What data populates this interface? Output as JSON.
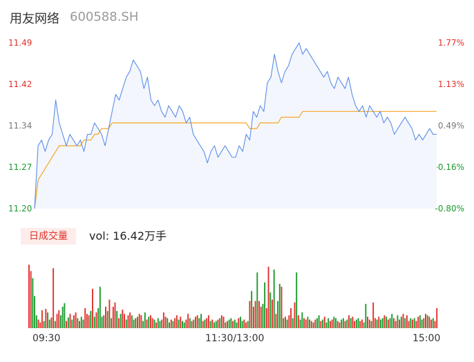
{
  "header": {
    "title": "用友网络",
    "code": "600588.SH"
  },
  "price_axis": {
    "left_labels": [
      "11.49",
      "11.42",
      "11.34",
      "11.27",
      "11.20"
    ],
    "right_labels": [
      "1.77%",
      "1.13%",
      "0.49%",
      "-0.16%",
      "-0.80%"
    ],
    "left_colors": [
      "#e0302b",
      "#e0302b",
      "#777777",
      "#1a9a2c",
      "#1a9a2c"
    ],
    "right_colors": [
      "#e0302b",
      "#e0302b",
      "#777777",
      "#1a9a2c",
      "#1a9a2c"
    ]
  },
  "volume_panel": {
    "tab_label": "日成交量",
    "vol_prefix": "vol:",
    "vol_value": "16.42万手"
  },
  "time_axis": {
    "labels": [
      "09:30",
      "11:30/13:00",
      "15:00"
    ]
  },
  "colors": {
    "price_line": "#5b8de8",
    "avg_line": "#f5a623",
    "fill": "#f3f6fd",
    "up": "#e0302b",
    "down": "#1a9a2c"
  },
  "chart_data": [
    {
      "type": "line",
      "title": "",
      "xlabel": "",
      "ylabel": "",
      "ylim": [
        11.2,
        11.49
      ],
      "x_labels": [
        "09:30",
        "11:30/13:00",
        "15:00"
      ],
      "series": [
        {
          "values": [
            11.2,
            11.31,
            11.32,
            11.3,
            11.32,
            11.33,
            11.39,
            11.35,
            11.33,
            11.31,
            11.33,
            11.32,
            11.31,
            11.32,
            11.3,
            11.33,
            11.33,
            11.35,
            11.34,
            11.33,
            11.31,
            11.34,
            11.37,
            11.4,
            11.39,
            11.41,
            11.43,
            11.44,
            11.46,
            11.45,
            11.44,
            11.41,
            11.43,
            11.39,
            11.38,
            11.39,
            11.37,
            11.36,
            11.38,
            11.37,
            11.36,
            11.38,
            11.37,
            11.35,
            11.36,
            11.33,
            11.32,
            11.31,
            11.3,
            11.28,
            11.3,
            11.31,
            11.29,
            11.3,
            11.31,
            11.3,
            11.29,
            11.29,
            11.31,
            11.3,
            11.33,
            11.32,
            11.37,
            11.36,
            11.38,
            11.37,
            11.42,
            11.43,
            11.47,
            11.44,
            11.42,
            11.44,
            11.45,
            11.47,
            11.48,
            11.49,
            11.47,
            11.48,
            11.47,
            11.46,
            11.45,
            11.44,
            11.43,
            11.44,
            11.42,
            11.41,
            11.43,
            11.42,
            11.41,
            11.43,
            11.4,
            11.38,
            11.37,
            11.38,
            11.36,
            11.38,
            11.37,
            11.36,
            11.37,
            11.35,
            11.36,
            11.35,
            11.33,
            11.34,
            11.35,
            11.36,
            11.35,
            11.34,
            11.32,
            11.33,
            11.32,
            11.33,
            11.34,
            11.33,
            11.33
          ]
        },
        {
          "values": [
            11.2,
            11.25,
            11.26,
            11.27,
            11.28,
            11.29,
            11.3,
            11.31,
            11.31,
            11.31,
            11.31,
            11.31,
            11.31,
            11.31,
            11.32,
            11.32,
            11.32,
            11.33,
            11.33,
            11.34,
            11.34,
            11.34,
            11.35,
            11.35,
            11.35,
            11.35,
            11.35,
            11.35,
            11.35,
            11.35,
            11.35,
            11.35,
            11.35,
            11.35,
            11.35,
            11.35,
            11.35,
            11.35,
            11.35,
            11.35,
            11.35,
            11.35,
            11.35,
            11.35,
            11.35,
            11.35,
            11.35,
            11.35,
            11.35,
            11.35,
            11.35,
            11.35,
            11.35,
            11.35,
            11.35,
            11.35,
            11.35,
            11.35,
            11.35,
            11.35,
            11.35,
            11.34,
            11.34,
            11.34,
            11.35,
            11.35,
            11.35,
            11.35,
            11.35,
            11.35,
            11.36,
            11.36,
            11.36,
            11.36,
            11.36,
            11.36,
            11.37,
            11.37,
            11.37,
            11.37,
            11.37,
            11.37,
            11.37,
            11.37,
            11.37,
            11.37,
            11.37,
            11.37,
            11.37,
            11.37,
            11.37,
            11.37,
            11.37,
            11.37,
            11.37,
            11.37,
            11.37,
            11.37,
            11.37,
            11.37,
            11.37,
            11.37,
            11.37,
            11.37,
            11.37,
            11.37,
            11.37,
            11.37,
            11.37,
            11.37,
            11.37,
            11.37,
            11.37,
            11.37,
            11.37
          ]
        }
      ]
    },
    {
      "type": "bar",
      "title": "",
      "values": [
        89,
        80,
        70,
        45,
        18,
        12,
        8,
        25,
        10,
        27,
        22,
        12,
        15,
        84,
        10,
        20,
        25,
        18,
        30,
        35,
        10,
        15,
        20,
        12,
        18,
        22,
        14,
        10,
        16,
        12,
        28,
        20,
        18,
        24,
        55,
        16,
        22,
        28,
        58,
        16,
        18,
        30,
        24,
        40,
        14,
        30,
        36,
        24,
        14,
        20,
        26,
        20,
        12,
        18,
        22,
        18,
        12,
        14,
        16,
        20,
        18,
        10,
        22,
        12,
        16,
        18,
        14,
        12,
        8,
        14,
        10,
        12,
        22,
        16,
        14,
        8,
        12,
        10,
        14,
        18,
        12,
        16,
        10,
        8,
        12,
        20,
        14,
        10,
        12,
        16,
        18,
        14,
        20,
        10,
        12,
        14,
        18,
        10,
        12,
        8,
        10,
        12,
        14,
        18,
        16,
        8,
        10,
        12,
        14,
        10,
        12,
        8,
        14,
        16,
        10,
        12,
        8,
        10,
        38,
        52,
        30,
        38,
        78,
        38,
        30,
        34,
        64,
        28,
        86,
        50,
        40,
        82,
        20,
        38,
        62,
        58,
        14,
        16,
        12,
        18,
        28,
        14,
        36,
        78,
        18,
        12,
        22,
        14,
        12,
        16,
        12,
        10,
        8,
        12,
        14,
        18,
        10,
        12,
        16,
        8,
        14,
        10,
        12,
        16,
        14,
        10,
        8,
        12,
        14,
        10,
        12,
        18,
        14,
        16,
        10,
        12,
        14,
        10,
        12,
        8,
        34,
        16,
        12,
        10,
        36,
        14,
        12,
        16,
        12,
        14,
        18,
        16,
        12,
        14,
        20,
        14,
        10,
        18,
        12,
        16,
        20,
        14,
        18,
        10,
        14,
        12,
        14,
        10,
        16,
        18,
        12,
        14,
        20,
        18,
        16,
        12,
        14,
        10,
        28
      ],
      "up": [
        1,
        1,
        0,
        0,
        0,
        1,
        1,
        1,
        0,
        1,
        0,
        0,
        1,
        1,
        0,
        1,
        1,
        0,
        0,
        0,
        1,
        0,
        1,
        0,
        1,
        1,
        0,
        1,
        0,
        0,
        1,
        1,
        1,
        0,
        1,
        0,
        1,
        0,
        0,
        0,
        1,
        1,
        0,
        1,
        0,
        1,
        1,
        0,
        1,
        0,
        1,
        1,
        0,
        1,
        1,
        0,
        0,
        1,
        0,
        1,
        1,
        0,
        0,
        1,
        0,
        1,
        1,
        0,
        1,
        0,
        0,
        1,
        1,
        1,
        0,
        0,
        1,
        0,
        1,
        1,
        0,
        1,
        0,
        0,
        1,
        1,
        0,
        1,
        0,
        1,
        1,
        0,
        0,
        1,
        0,
        1,
        1,
        0,
        1,
        0,
        0,
        1,
        0,
        1,
        1,
        0,
        1,
        0,
        0,
        1,
        0,
        0,
        1,
        0,
        0,
        1,
        1,
        0,
        1,
        0,
        1,
        1,
        0,
        1,
        1,
        0,
        0,
        1,
        1,
        0,
        1,
        0,
        1,
        0,
        0,
        1,
        0,
        1,
        0,
        1,
        1,
        0,
        1,
        0,
        1,
        0,
        0,
        1,
        1,
        0,
        1,
        0,
        1,
        1,
        0,
        0,
        1,
        0,
        1,
        0,
        0,
        1,
        1,
        0,
        0,
        1,
        1,
        0,
        0,
        1,
        0,
        1,
        0,
        1,
        1,
        0,
        0,
        1,
        1,
        0,
        0,
        1,
        1,
        0,
        1,
        1,
        0,
        1,
        0,
        0,
        1,
        0,
        1,
        0,
        0,
        1,
        1,
        0,
        1,
        0,
        1,
        0,
        1,
        1,
        0,
        1,
        0,
        1,
        1,
        0,
        0,
        1,
        1,
        0,
        1,
        1,
        0,
        1,
        1,
        1
      ]
    }
  ]
}
